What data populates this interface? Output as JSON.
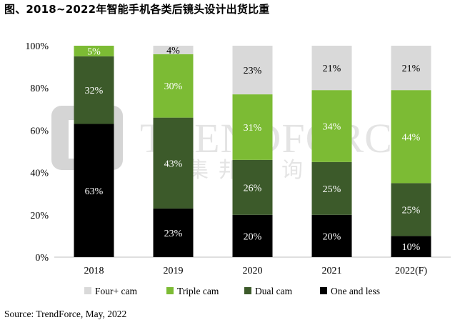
{
  "title": "图、2018~2022年智能手机各类后镜头设计出货比重",
  "source": "Source: TrendForce, May, 2022",
  "watermark": {
    "text": "TRENDFORCE",
    "subtext": "集邦咨询"
  },
  "colors": {
    "four_plus": "#d9d9d9",
    "triple": "#7cbb34",
    "dual": "#3c5a2a",
    "one_and_less": "#000000"
  },
  "chart_data": {
    "type": "bar",
    "stacked": true,
    "categories": [
      "2018",
      "2019",
      "2020",
      "2021",
      "2022(F)"
    ],
    "ylim": [
      0,
      100
    ],
    "yticks": [
      "0%",
      "20%",
      "40%",
      "60%",
      "80%",
      "100%"
    ],
    "legend_position": "bottom",
    "series": [
      {
        "name": "One and less",
        "key": "one_and_less",
        "values": [
          63,
          23,
          20,
          20,
          10
        ]
      },
      {
        "name": "Dual cam",
        "key": "dual",
        "values": [
          32,
          43,
          26,
          25,
          25
        ]
      },
      {
        "name": "Triple cam",
        "key": "triple",
        "values": [
          5,
          30,
          31,
          34,
          44
        ]
      },
      {
        "name": "Four+ cam",
        "key": "four_plus",
        "values": [
          0,
          4,
          23,
          21,
          21
        ]
      }
    ],
    "labels": [
      [
        "63%",
        "32%",
        "5%",
        ""
      ],
      [
        "23%",
        "43%",
        "30%",
        "4%"
      ],
      [
        "20%",
        "26%",
        "31%",
        "23%"
      ],
      [
        "20%",
        "25%",
        "34%",
        "21%"
      ],
      [
        "10%",
        "25%",
        "44%",
        "21%"
      ]
    ],
    "legend_order": [
      "Four+ cam",
      "Triple cam",
      "Dual cam",
      "One and less"
    ]
  }
}
